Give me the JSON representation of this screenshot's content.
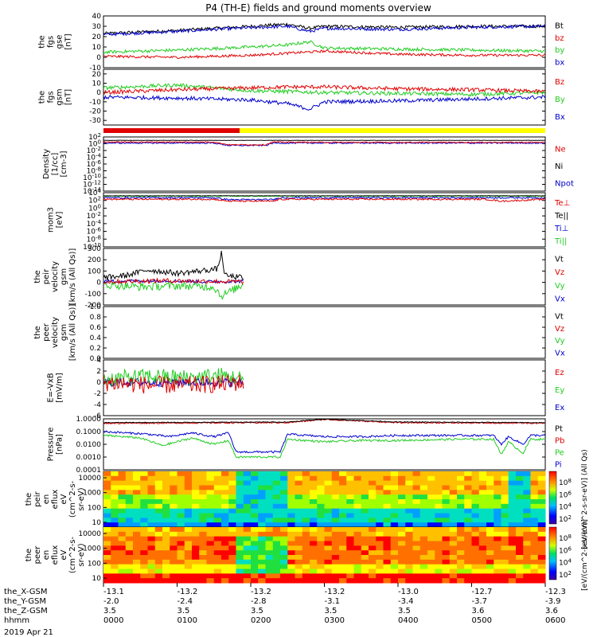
{
  "title": "P4 (TH-E) fields and ground moments overview",
  "date_label": "2019 Apr 21",
  "colors": {
    "black": "#000000",
    "red": "#e00000",
    "green": "#22cc22",
    "blue": "#0000cc",
    "yellow": "#ffff00",
    "barred": "#e00000"
  },
  "chart_data": [
    {
      "id": "p1",
      "type": "line",
      "ylabel": [
        "the",
        "fgs",
        "gse",
        "[nT]"
      ],
      "yticks": [
        "40",
        "30",
        "20",
        "10",
        "0",
        "-10"
      ],
      "ylim": [
        -10,
        40
      ],
      "legend": [
        {
          "text": "Bt",
          "color": "#000000"
        },
        {
          "text": "bz",
          "color": "#e00000"
        },
        {
          "text": "by",
          "color": "#22cc22"
        },
        {
          "text": "bx",
          "color": "#0000cc"
        }
      ],
      "series": [
        {
          "name": "Bt",
          "color": "#000000",
          "t": [
            0,
            1,
            1.5,
            2.5,
            2.8,
            3,
            4,
            5,
            6
          ],
          "values": [
            23,
            26,
            28,
            32,
            28,
            30,
            29,
            30,
            30
          ],
          "noise": 1.5
        },
        {
          "name": "bx",
          "color": "#0000cc",
          "t": [
            0,
            1,
            1.5,
            2.5,
            2.8,
            3,
            4,
            5,
            6
          ],
          "values": [
            22,
            25,
            27,
            30,
            25,
            28,
            27,
            29,
            30
          ],
          "noise": 1.5
        },
        {
          "name": "by",
          "color": "#22cc22",
          "t": [
            0,
            1,
            2,
            2.5,
            2.8,
            3,
            4,
            5,
            6
          ],
          "values": [
            5,
            7,
            10,
            12,
            15,
            9,
            8,
            7,
            6
          ],
          "noise": 1.5
        },
        {
          "name": "bz",
          "color": "#e00000",
          "t": [
            0,
            1,
            2,
            2.5,
            3,
            4,
            5,
            6
          ],
          "values": [
            1,
            0,
            2,
            4,
            6,
            3,
            2,
            2
          ],
          "noise": 1.2
        }
      ]
    },
    {
      "id": "p2",
      "type": "line",
      "ylabel": [
        "the",
        "fgs",
        "gsm",
        "[nT]"
      ],
      "yticks": [
        "20",
        "10",
        "0",
        "-10",
        "-20",
        "-30"
      ],
      "ylim": [
        -35,
        25
      ],
      "legend": [
        {
          "text": "Bz",
          "color": "#e00000"
        },
        {
          "text": "By",
          "color": "#22cc22"
        },
        {
          "text": "Bx",
          "color": "#0000cc"
        }
      ],
      "series": [
        {
          "name": "By",
          "color": "#22cc22",
          "t": [
            0,
            1,
            2,
            2.5,
            3,
            4,
            5,
            6
          ],
          "values": [
            5,
            8,
            2,
            1,
            0,
            -1,
            -2,
            0
          ],
          "noise": 2
        },
        {
          "name": "Bz",
          "color": "#e00000",
          "t": [
            0,
            1,
            2,
            2.5,
            3,
            4,
            5,
            6
          ],
          "values": [
            0,
            3,
            5,
            6,
            6,
            4,
            3,
            1
          ],
          "noise": 2
        },
        {
          "name": "Bx",
          "color": "#0000cc",
          "t": [
            0,
            1,
            2,
            2.5,
            2.8,
            3,
            4,
            5,
            6
          ],
          "values": [
            -5,
            -6,
            -8,
            -12,
            -18,
            -10,
            -9,
            -7,
            -5
          ],
          "noise": 2
        }
      ]
    },
    {
      "id": "p3",
      "type": "line",
      "log": true,
      "ylabel": [
        "Density",
        "[1/cc]",
        "[cm-3]"
      ],
      "yticks": [
        "10^2",
        "10^0",
        "10^-2",
        "10^-4",
        "10^-6",
        "10^-8",
        "10^-10",
        "10^-12",
        "10^-14"
      ],
      "ylim": [
        -14,
        2
      ],
      "legend": [
        {
          "text": "Ne",
          "color": "#e00000"
        },
        {
          "text": "Ni",
          "color": "#000000"
        },
        {
          "text": "Npot",
          "color": "#0000cc"
        }
      ],
      "series": [
        {
          "name": "Npot",
          "color": "#0000cc",
          "t": [
            0,
            1.5,
            1.7,
            2.2,
            2.3,
            3,
            4,
            5,
            6
          ],
          "values": [
            0.2,
            0.2,
            -0.5,
            -0.5,
            0.2,
            0.2,
            0.2,
            0.2,
            0.2
          ],
          "noise": 0.2
        },
        {
          "name": "Ne",
          "color": "#e00000",
          "t": [
            0,
            1.5,
            1.7,
            2.2,
            2.3,
            3,
            4,
            5,
            6
          ],
          "values": [
            0.5,
            0.5,
            -0.3,
            -0.3,
            0.5,
            0.4,
            0.4,
            0.4,
            0.4
          ],
          "noise": 0.15
        },
        {
          "name": "Ni",
          "color": "#000000",
          "t": [
            0,
            6
          ],
          "values": [
            1,
            1
          ],
          "noise": 0.05
        }
      ]
    },
    {
      "id": "p4",
      "type": "line",
      "log": true,
      "ylabel": [
        "mom3",
        "[eV]"
      ],
      "yticks": [
        "10^4",
        "10^2",
        "10^0",
        "10^-2",
        "10^-4",
        "10^-6",
        "10^-8",
        "10^-10"
      ],
      "ylim": [
        -10,
        4
      ],
      "legend": [
        {
          "text": "Te⊥",
          "color": "#e00000"
        },
        {
          "text": "Te||",
          "color": "#000000"
        },
        {
          "text": "Ti⊥",
          "color": "#0000cc"
        },
        {
          "text": "Ti||",
          "color": "#22cc22"
        }
      ],
      "series": [
        {
          "name": "Ti||",
          "color": "#22cc22",
          "t": [
            0,
            6
          ],
          "values": [
            3.1,
            3.1
          ],
          "noise": 0.1
        },
        {
          "name": "Ti⊥",
          "color": "#0000cc",
          "t": [
            0,
            1.5,
            1.7,
            2.3,
            2.4,
            4,
            5,
            6
          ],
          "values": [
            2.7,
            2.7,
            2.2,
            2.2,
            2.7,
            2.7,
            2.7,
            2.7
          ],
          "noise": 0.2
        },
        {
          "name": "Te⊥",
          "color": "#e00000",
          "t": [
            0,
            1.5,
            1.7,
            2.3,
            2.4,
            4,
            5.2,
            5.4,
            6
          ],
          "values": [
            2.3,
            2.3,
            1.8,
            1.8,
            2.3,
            2.3,
            2.3,
            1.8,
            2.3
          ],
          "noise": 0.2
        },
        {
          "name": "Te||",
          "color": "#000000",
          "t": [
            0,
            6
          ],
          "values": [
            3.2,
            3.2
          ],
          "noise": 0.05
        }
      ]
    },
    {
      "id": "p5",
      "type": "line",
      "ylabel": [
        "the",
        "peir",
        "velocity",
        "gsm",
        "[km/s (All Qs)]"
      ],
      "yticks": [
        "300",
        "200",
        "100",
        "0",
        "-100",
        "-200"
      ],
      "ylim": [
        -200,
        300
      ],
      "legend": [
        {
          "text": "Vt",
          "color": "#000000"
        },
        {
          "text": "Vz",
          "color": "#e00000"
        },
        {
          "text": "Vy",
          "color": "#22cc22"
        },
        {
          "text": "Vx",
          "color": "#0000cc"
        }
      ],
      "series": [
        {
          "name": "Vx",
          "color": "#0000cc",
          "t": [
            0,
            0.8,
            1.4,
            1.9
          ],
          "values": [
            10,
            15,
            5,
            10
          ],
          "noise": 15
        },
        {
          "name": "Vy",
          "color": "#22cc22",
          "t": [
            0,
            0.5,
            1.0,
            1.5,
            1.6,
            1.9
          ],
          "values": [
            -20,
            -40,
            -30,
            -40,
            -120,
            -20
          ],
          "noise": 35
        },
        {
          "name": "Vz",
          "color": "#e00000",
          "t": [
            0,
            0.8,
            1.4,
            1.9
          ],
          "values": [
            5,
            15,
            10,
            5
          ],
          "noise": 20
        },
        {
          "name": "Vt",
          "color": "#000000",
          "t": [
            0,
            0.3,
            0.6,
            1.0,
            1.3,
            1.55,
            1.6,
            1.65,
            1.9
          ],
          "values": [
            40,
            60,
            110,
            80,
            100,
            120,
            260,
            60,
            40
          ],
          "noise": 25
        }
      ]
    },
    {
      "id": "p6",
      "type": "line",
      "ylabel": [
        "the",
        "peer",
        "velocity",
        "gsm",
        "[km/s (All Qs)]"
      ],
      "yticks": [
        "1.0",
        "0.8",
        "0.6",
        "0.4",
        "0.2",
        "0.0"
      ],
      "ylim": [
        0,
        1
      ],
      "legend": [
        {
          "text": "Vt",
          "color": "#000000"
        },
        {
          "text": "Vz",
          "color": "#e00000"
        },
        {
          "text": "Vy",
          "color": "#22cc22"
        },
        {
          "text": "Vx",
          "color": "#0000cc"
        }
      ],
      "series": []
    },
    {
      "id": "p7",
      "type": "line",
      "ylabel": [
        "E=-VxB",
        "[mV/m]"
      ],
      "yticks": [
        "4",
        "2",
        "0",
        "-2",
        "-4",
        "-6"
      ],
      "ylim": [
        -6,
        4
      ],
      "legend": [
        {
          "text": "Ez",
          "color": "#e00000"
        },
        {
          "text": "Ey",
          "color": "#22cc22"
        },
        {
          "text": "Ex",
          "color": "#0000cc"
        }
      ],
      "series": [
        {
          "name": "Ex",
          "color": "#0000cc",
          "t": [
            0,
            1.9
          ],
          "values": [
            0,
            0
          ],
          "noise": 0.8
        },
        {
          "name": "Ey",
          "color": "#22cc22",
          "t": [
            0,
            0.6,
            1.2,
            1.6,
            1.9
          ],
          "values": [
            0.5,
            1,
            0.8,
            1.2,
            0.5
          ],
          "noise": 1.5
        },
        {
          "name": "Ez",
          "color": "#e00000",
          "t": [
            0,
            0.6,
            1.2,
            1.6,
            1.9
          ],
          "values": [
            0,
            -0.5,
            -0.5,
            -0.3,
            0
          ],
          "noise": 1.6
        }
      ]
    },
    {
      "id": "p8",
      "type": "line",
      "log": true,
      "ylabel": [
        "Pressure",
        "[nPa]"
      ],
      "yticks": [
        "1.0000",
        "0.1000",
        "0.0100",
        "0.0010",
        "0.0001"
      ],
      "ylim": [
        -4,
        0
      ],
      "legend": [
        {
          "text": "Pt",
          "color": "#000000"
        },
        {
          "text": "Pb",
          "color": "#e00000"
        },
        {
          "text": "Pe",
          "color": "#22cc22"
        },
        {
          "text": "Pi",
          "color": "#0000cc"
        }
      ],
      "series": [
        {
          "name": "Pi",
          "color": "#0000cc",
          "t": [
            0,
            0.6,
            0.9,
            1.2,
            1.5,
            1.7,
            1.8,
            2.4,
            2.5,
            3,
            3.5,
            4,
            4.8,
            5.3,
            5.4,
            5.5,
            5.7,
            5.8,
            6
          ],
          "values": [
            -1,
            -1.2,
            -1.4,
            -1.1,
            -1.4,
            -1.1,
            -2.6,
            -2.6,
            -1.2,
            -1.4,
            -1.4,
            -1.3,
            -1.3,
            -1.3,
            -2,
            -1.4,
            -2,
            -1.3,
            -1.3
          ],
          "noise": 0.08
        },
        {
          "name": "Pe",
          "color": "#22cc22",
          "t": [
            0,
            0.5,
            0.8,
            1.2,
            1.5,
            1.7,
            1.8,
            2.4,
            2.5,
            3,
            3.5,
            4,
            4.8,
            5.3,
            5.4,
            5.5,
            5.7,
            5.8,
            6
          ],
          "values": [
            -1.3,
            -1.5,
            -2.1,
            -1.5,
            -2,
            -1.7,
            -3,
            -3,
            -1.6,
            -1.8,
            -1.7,
            -1.7,
            -1.6,
            -1.6,
            -2.8,
            -1.8,
            -2.7,
            -1.6,
            -1.6
          ],
          "noise": 0.08
        },
        {
          "name": "Pb",
          "color": "#e00000",
          "t": [
            0,
            2.5,
            3,
            4,
            6
          ],
          "values": [
            -0.35,
            -0.3,
            -0.05,
            -0.3,
            -0.35
          ],
          "noise": 0.05
        },
        {
          "name": "Pt",
          "color": "#000000",
          "t": [
            0,
            2.5,
            3,
            4,
            6
          ],
          "values": [
            -0.3,
            -0.25,
            -0.02,
            -0.25,
            -0.3
          ],
          "noise": 0.03
        }
      ]
    },
    {
      "id": "p9",
      "type": "heatmap",
      "ylabel": [
        "the",
        "peir",
        "en",
        "eflux",
        "eV",
        "(cm^2-s-",
        "sr-eV)"
      ],
      "yticks": [
        "10000",
        "1000",
        "100",
        "10"
      ],
      "colorbar": {
        "label": "[eV/(cm^2-s-sr-eV)] (All Qs)",
        "ticks": [
          "10^8",
          "10^6",
          "10^4",
          "10^2"
        ]
      }
    },
    {
      "id": "p10",
      "type": "heatmap",
      "ylabel": [
        "the",
        "peer",
        "en",
        "eflux",
        "eV",
        "(cm^2-s-",
        "sr-eV)"
      ],
      "yticks": [
        "10000",
        "1000",
        "100",
        "10"
      ],
      "colorbar": {
        "label": "[eV/(cm^2-s-sr-eV)]",
        "ticks": [
          "10^8",
          "10^6",
          "10^4",
          "10^2"
        ]
      }
    }
  ],
  "xaxis": {
    "rows": [
      {
        "label": "the_X-GSM",
        "values": [
          "-13.1",
          "-13.2",
          "-13.2",
          "-13.2",
          "-13.0",
          "-12.7",
          "-12.3"
        ]
      },
      {
        "label": "the_Y-GSM",
        "values": [
          "-2.0",
          "-2.4",
          "-2.8",
          "-3.1",
          "-3.4",
          "-3.7",
          "-3.9"
        ]
      },
      {
        "label": "the_Z-GSM",
        "values": [
          "3.5",
          "3.5",
          "3.5",
          "3.5",
          "3.5",
          "3.6",
          "3.6"
        ]
      },
      {
        "label": "hhmm",
        "values": [
          "0000",
          "0100",
          "0200",
          "0300",
          "0400",
          "0500",
          "0600"
        ]
      }
    ]
  }
}
